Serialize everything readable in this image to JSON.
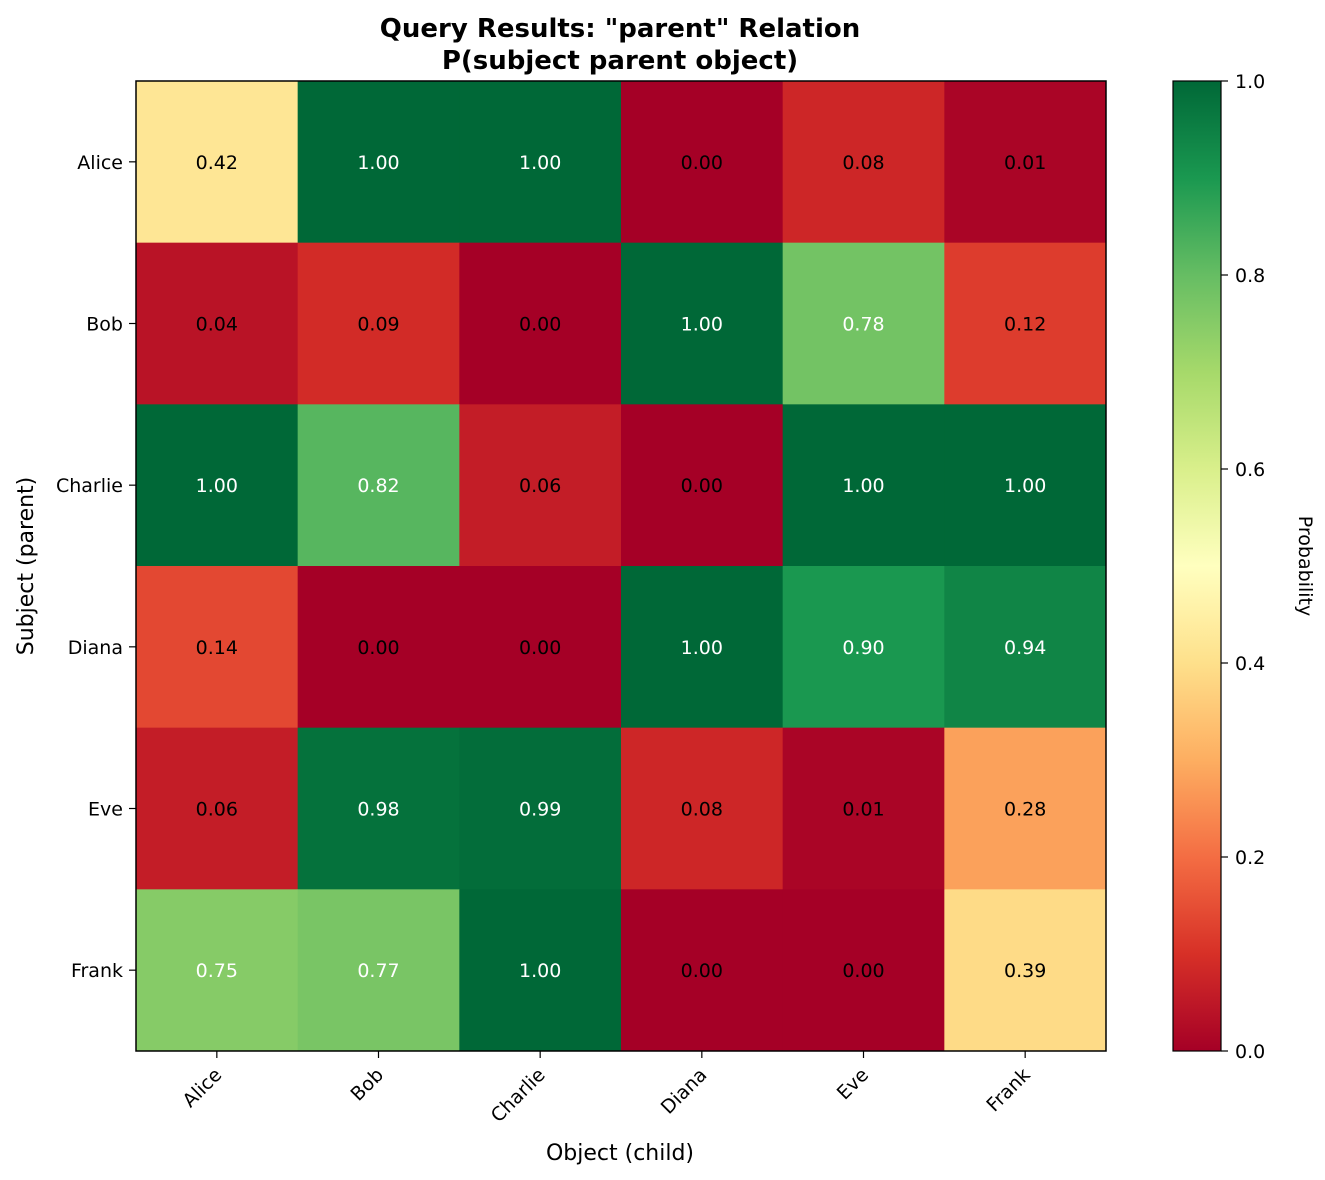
{
  "chart_data": {
    "type": "heatmap",
    "title": "Query Results: \"parent\" Relation",
    "subtitle": "P(subject parent object)",
    "xlabel": "Object (child)",
    "ylabel": "Subject (parent)",
    "x_categories": [
      "Alice",
      "Bob",
      "Charlie",
      "Diana",
      "Eve",
      "Frank"
    ],
    "y_categories": [
      "Alice",
      "Bob",
      "Charlie",
      "Diana",
      "Eve",
      "Frank"
    ],
    "values": [
      [
        0.42,
        1.0,
        1.0,
        0.0,
        0.08,
        0.01
      ],
      [
        0.04,
        0.09,
        0.0,
        1.0,
        0.78,
        0.12
      ],
      [
        1.0,
        0.82,
        0.06,
        0.0,
        1.0,
        1.0
      ],
      [
        0.14,
        0.0,
        0.0,
        1.0,
        0.9,
        0.94
      ],
      [
        0.06,
        0.98,
        0.99,
        0.08,
        0.01,
        0.28
      ],
      [
        0.75,
        0.77,
        1.0,
        0.0,
        0.0,
        0.39
      ]
    ],
    "value_format": "0.00",
    "colormap": "RdYlGn",
    "vmin": 0.0,
    "vmax": 1.0,
    "colorbar": {
      "label": "Probability",
      "ticks": [
        "0.0",
        "0.2",
        "0.4",
        "0.6",
        "0.8",
        "1.0"
      ]
    },
    "grid": false
  }
}
